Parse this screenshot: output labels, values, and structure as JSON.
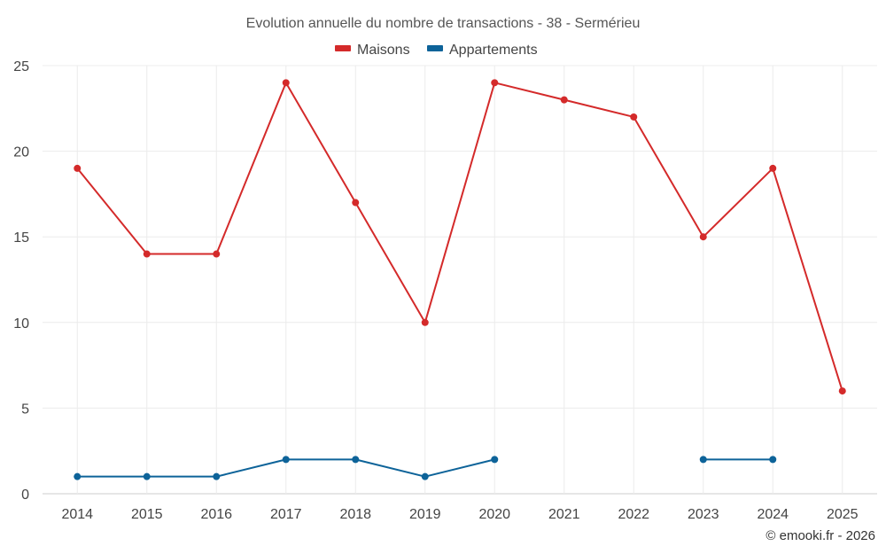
{
  "chart_data": {
    "type": "line",
    "title": "Evolution annuelle du nombre de transactions - 38 - Sermérieu",
    "categories": [
      "2014",
      "2015",
      "2016",
      "2017",
      "2018",
      "2019",
      "2020",
      "2021",
      "2022",
      "2023",
      "2024",
      "2025"
    ],
    "series": [
      {
        "name": "Maisons",
        "color": "#d42a2a",
        "values": [
          19,
          14,
          14,
          24,
          17,
          10,
          24,
          23,
          22,
          15,
          19,
          6
        ]
      },
      {
        "name": "Appartements",
        "color": "#0d6399",
        "values": [
          1,
          1,
          1,
          2,
          2,
          1,
          2,
          null,
          null,
          2,
          2,
          null
        ]
      }
    ],
    "ylim": [
      0,
      25
    ],
    "yticks": [
      0,
      5,
      10,
      15,
      20,
      25
    ],
    "xlabel": "",
    "ylabel": "",
    "grid": true,
    "legend": "top-center"
  },
  "credit": "© emooki.fr - 2026"
}
